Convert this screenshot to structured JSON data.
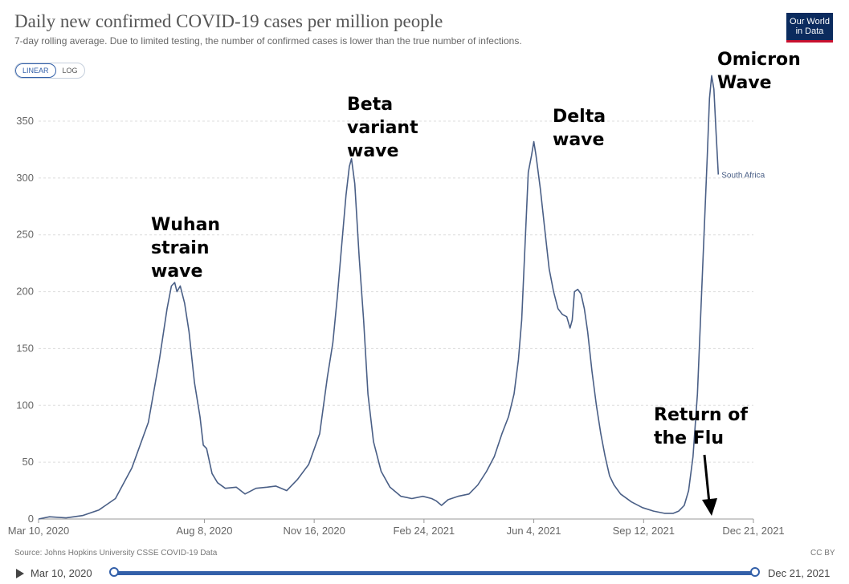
{
  "header": {
    "title": "Daily new confirmed COVID-19 cases per million people",
    "subtitle": "7-day rolling average. Due to limited testing, the number of confirmed cases is lower than the true number of infections.",
    "logo_line1": "Our World",
    "logo_line2": "in Data"
  },
  "scale_toggle": {
    "linear": "LINEAR",
    "log": "LOG",
    "selected": "LINEAR"
  },
  "footer": {
    "source": "Source: Johns Hopkins University CSSE COVID-19 Data",
    "license": "CC BY"
  },
  "timeline": {
    "start_label": "Mar 10, 2020",
    "end_label": "Dec 21, 2021",
    "range_selected_fraction": [
      0,
      1
    ]
  },
  "colors": {
    "series": "#4a5f86",
    "grid": "#dddddd",
    "accent": "#3360a9"
  },
  "chart_data": {
    "type": "line",
    "title": "Daily new confirmed COVID-19 cases per million people",
    "xlabel": "",
    "ylabel": "",
    "xlim": [
      0,
      651
    ],
    "ylim": [
      0,
      385
    ],
    "yticks": [
      0,
      50,
      100,
      150,
      200,
      250,
      300,
      350
    ],
    "xticks": [
      {
        "day": 0,
        "label": "Mar 10, 2020"
      },
      {
        "day": 151,
        "label": "Aug 8, 2020"
      },
      {
        "day": 251,
        "label": "Nov 16, 2020"
      },
      {
        "day": 351,
        "label": "Feb 24, 2021"
      },
      {
        "day": 451,
        "label": "Jun 4, 2021"
      },
      {
        "day": 551,
        "label": "Sep 12, 2021"
      },
      {
        "day": 651,
        "label": "Dec 21, 2021"
      }
    ],
    "grid": true,
    "series": [
      {
        "name": "South Africa",
        "points": [
          [
            0,
            0
          ],
          [
            10,
            2
          ],
          [
            25,
            1
          ],
          [
            40,
            3
          ],
          [
            55,
            8
          ],
          [
            70,
            18
          ],
          [
            85,
            45
          ],
          [
            100,
            85
          ],
          [
            110,
            140
          ],
          [
            117,
            185
          ],
          [
            121,
            205
          ],
          [
            124,
            208
          ],
          [
            126,
            200
          ],
          [
            129,
            205
          ],
          [
            133,
            190
          ],
          [
            137,
            165
          ],
          [
            142,
            120
          ],
          [
            147,
            90
          ],
          [
            150,
            65
          ],
          [
            153,
            62
          ],
          [
            158,
            40
          ],
          [
            163,
            32
          ],
          [
            170,
            27
          ],
          [
            180,
            28
          ],
          [
            188,
            22
          ],
          [
            198,
            27
          ],
          [
            208,
            28
          ],
          [
            216,
            29
          ],
          [
            226,
            25
          ],
          [
            236,
            35
          ],
          [
            246,
            48
          ],
          [
            256,
            75
          ],
          [
            263,
            125
          ],
          [
            268,
            155
          ],
          [
            272,
            195
          ],
          [
            276,
            240
          ],
          [
            280,
            285
          ],
          [
            283,
            310
          ],
          [
            285,
            317
          ],
          [
            288,
            295
          ],
          [
            292,
            230
          ],
          [
            296,
            175
          ],
          [
            300,
            110
          ],
          [
            305,
            68
          ],
          [
            312,
            42
          ],
          [
            320,
            28
          ],
          [
            330,
            20
          ],
          [
            340,
            18
          ],
          [
            350,
            20
          ],
          [
            358,
            18
          ],
          [
            362,
            16
          ],
          [
            367,
            12
          ],
          [
            373,
            17
          ],
          [
            382,
            20
          ],
          [
            392,
            22
          ],
          [
            400,
            30
          ],
          [
            408,
            42
          ],
          [
            415,
            55
          ],
          [
            422,
            75
          ],
          [
            428,
            90
          ],
          [
            433,
            110
          ],
          [
            437,
            140
          ],
          [
            440,
            175
          ],
          [
            443,
            240
          ],
          [
            446,
            305
          ],
          [
            449,
            320
          ],
          [
            451,
            332
          ],
          [
            453,
            320
          ],
          [
            457,
            290
          ],
          [
            461,
            255
          ],
          [
            465,
            220
          ],
          [
            469,
            200
          ],
          [
            473,
            185
          ],
          [
            477,
            180
          ],
          [
            481,
            178
          ],
          [
            484,
            168
          ],
          [
            486,
            175
          ],
          [
            488,
            200
          ],
          [
            491,
            202
          ],
          [
            494,
            198
          ],
          [
            497,
            185
          ],
          [
            500,
            165
          ],
          [
            504,
            130
          ],
          [
            508,
            100
          ],
          [
            512,
            75
          ],
          [
            516,
            55
          ],
          [
            520,
            38
          ],
          [
            524,
            30
          ],
          [
            530,
            22
          ],
          [
            540,
            15
          ],
          [
            550,
            10
          ],
          [
            560,
            7
          ],
          [
            570,
            5
          ],
          [
            578,
            5
          ],
          [
            583,
            7
          ],
          [
            588,
            12
          ],
          [
            592,
            25
          ],
          [
            596,
            55
          ],
          [
            600,
            110
          ],
          [
            603,
            180
          ],
          [
            606,
            250
          ],
          [
            609,
            320
          ],
          [
            611,
            370
          ],
          [
            613,
            390
          ],
          [
            615,
            378
          ],
          [
            617,
            340
          ],
          [
            619,
            303
          ]
        ],
        "end_label": "South Africa"
      }
    ],
    "annotations": [
      {
        "id": "wuhan",
        "lines": [
          "Wuhan",
          "strain",
          "wave"
        ]
      },
      {
        "id": "beta",
        "lines": [
          "Beta",
          "variant",
          "wave"
        ]
      },
      {
        "id": "delta",
        "lines": [
          "Delta",
          "wave"
        ]
      },
      {
        "id": "omicron",
        "lines": [
          "Omicron",
          "Wave"
        ]
      },
      {
        "id": "flu",
        "lines": [
          "Return of",
          "the Flu"
        ]
      }
    ]
  }
}
